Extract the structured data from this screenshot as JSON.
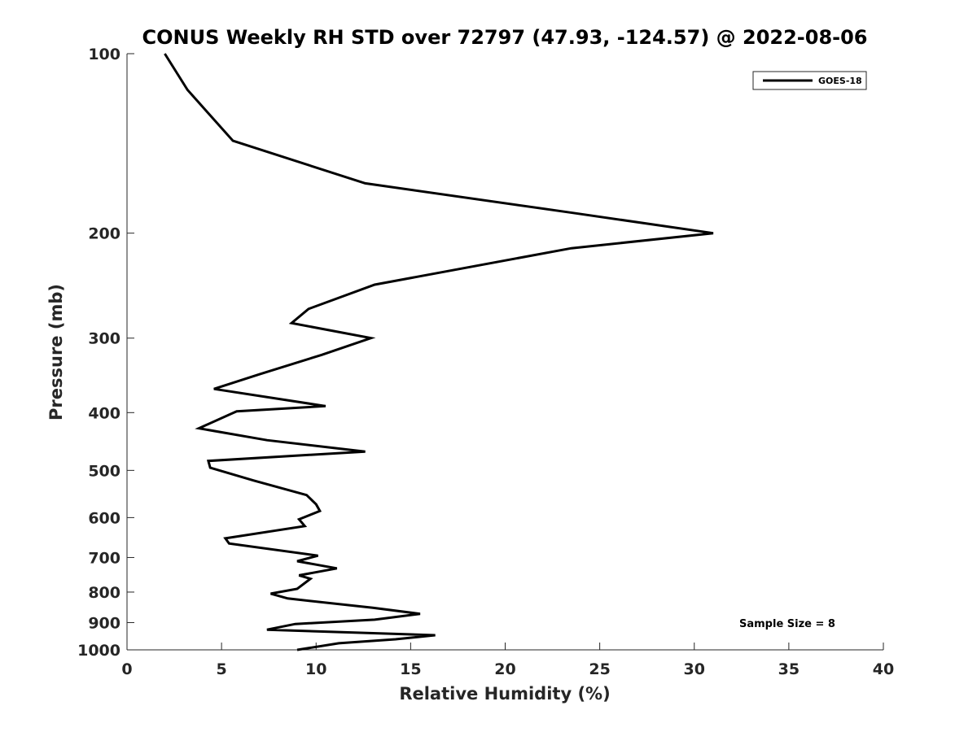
{
  "chart_data": {
    "type": "line",
    "title": "CONUS Weekly RH STD over 72797 (47.93, -124.57) @ 2022-08-06",
    "xlabel": "Relative Humidity (%)",
    "ylabel": "Pressure (mb)",
    "xlim": [
      0,
      40
    ],
    "ylim": [
      100,
      1000
    ],
    "yscale": "log",
    "yreversed": true,
    "grid": false,
    "legend_position": "top-right",
    "x_ticks": [
      0,
      5,
      10,
      15,
      20,
      25,
      30,
      35,
      40
    ],
    "x_tick_labels": [
      "0",
      "5",
      "10",
      "15",
      "20",
      "25",
      "30",
      "35",
      "40"
    ],
    "y_ticks": [
      100,
      200,
      300,
      400,
      500,
      600,
      700,
      800,
      900,
      1000
    ],
    "y_tick_labels": [
      "100",
      "200",
      "300",
      "400",
      "500",
      "600",
      "700",
      "800",
      "900",
      "1000"
    ],
    "series": [
      {
        "name": "GOES-18",
        "color": "#000000",
        "x": [
          2.0,
          3.2,
          5.6,
          12.6,
          23.6,
          31.0,
          23.5,
          13.1,
          9.6,
          8.7,
          12.9,
          10.3,
          7.0,
          4.6,
          10.5,
          5.8,
          3.8,
          7.4,
          12.6,
          4.3,
          4.4,
          6.7,
          9.5,
          10.0,
          10.2,
          9.1,
          9.4,
          5.2,
          5.4,
          10.1,
          9.0,
          11.1,
          9.1,
          9.7,
          9.0,
          7.6,
          8.5,
          13.0,
          15.5,
          13.1,
          8.9,
          7.4,
          16.3,
          14.2,
          11.2,
          9.0
        ],
        "y": [
          100,
          115,
          140,
          165,
          185,
          200,
          212,
          244,
          268,
          283,
          300,
          320,
          345,
          365,
          390,
          398,
          425,
          445,
          465,
          482,
          495,
          520,
          550,
          570,
          585,
          604,
          620,
          650,
          663,
          695,
          710,
          730,
          750,
          760,
          790,
          805,
          820,
          850,
          870,
          890,
          905,
          925,
          945,
          960,
          975,
          1000
        ]
      }
    ],
    "annotations": [
      {
        "text": "Sample Size = 8"
      }
    ]
  }
}
